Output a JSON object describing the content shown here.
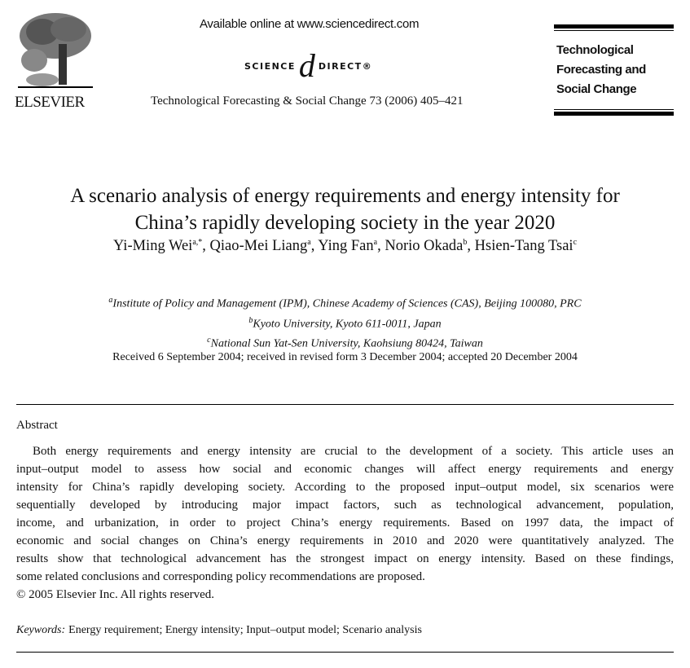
{
  "header": {
    "publisher": "ELSEVIER",
    "available_online": "Available online at www.sciencedirect.com",
    "sciencedirect_logo": {
      "left": "SCIENCE",
      "at": "d",
      "right": "DIRECT®"
    },
    "journal_ref": "Technological Forecasting & Social Change 73 (2006) 405–421",
    "journal_title_lines": [
      "Technological",
      "Forecasting and",
      "Social Change"
    ]
  },
  "article": {
    "title_lines": [
      "A scenario analysis of energy requirements and energy intensity for",
      "China’s rapidly developing society in the year 2020"
    ],
    "authors": [
      {
        "name": "Yi-Ming Wei",
        "sup": "a,*"
      },
      {
        "name": "Qiao-Mei Liang",
        "sup": "a"
      },
      {
        "name": "Ying Fan",
        "sup": "a"
      },
      {
        "name": "Norio Okada",
        "sup": "b"
      },
      {
        "name": "Hsien-Tang Tsai",
        "sup": "c"
      }
    ],
    "affiliations": [
      {
        "sup": "a",
        "text": "Institute of Policy and Management (IPM), Chinese Academy of Sciences (CAS), Beijing 100080, PRC"
      },
      {
        "sup": "b",
        "text": "Kyoto University, Kyoto 611-0011, Japan"
      },
      {
        "sup": "c",
        "text": "National Sun Yat-Sen University, Kaohsiung 80424, Taiwan"
      }
    ],
    "received": "Received 6 September 2004; received in revised form 3 December 2004; accepted 20 December 2004",
    "abstract_heading": "Abstract",
    "abstract_lines": [
      "Both energy requirements and energy intensity are crucial to the development of a society. This article uses an",
      "input–output model to assess how social and economic changes will affect energy requirements and energy",
      "intensity for China’s rapidly developing society. According to the proposed input–output model, six scenarios were",
      "sequentially developed by introducing major impact factors, such as technological advancement, population,",
      "income, and urbanization, in order to project China’s energy requirements. Based on 1997 data, the impact of",
      "economic and social changes on China’s energy requirements in 2010 and 2020 were quantitatively analyzed. The",
      "results show that technological advancement has the strongest impact on energy intensity. Based on these findings,",
      "some related conclusions and corresponding policy recommendations are proposed."
    ],
    "copyright": "© 2005 Elsevier Inc. All rights reserved.",
    "keywords_label": "Keywords:",
    "keywords": "Energy requirement; Energy intensity; Input–output model; Scenario analysis"
  }
}
